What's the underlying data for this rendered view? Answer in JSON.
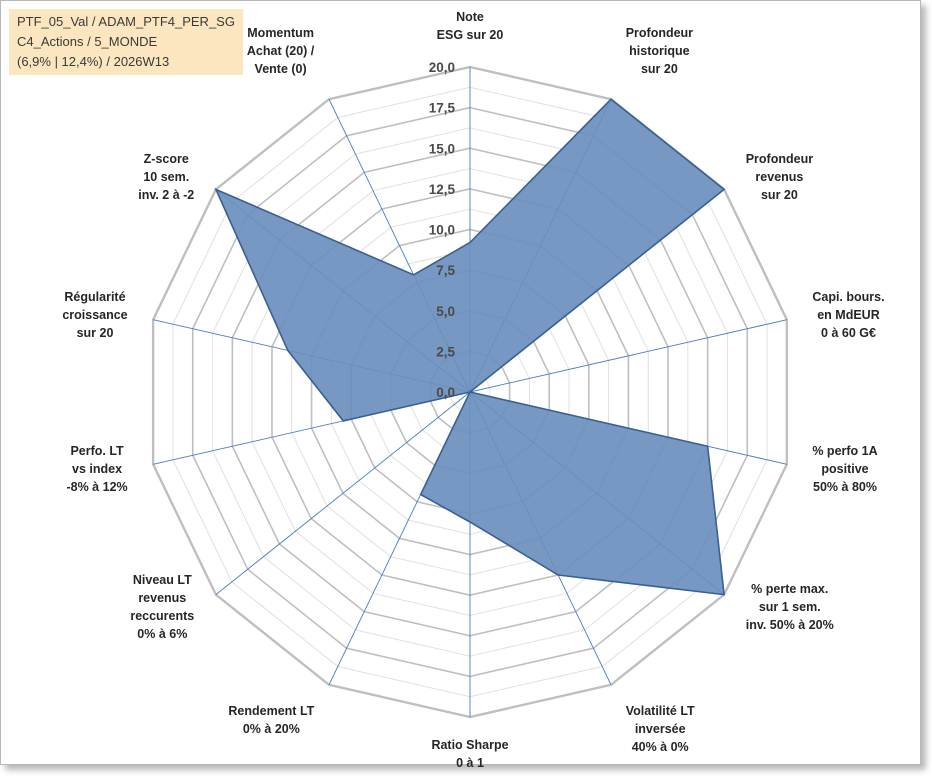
{
  "header": {
    "line1": "PTF_05_Val / ADAM_PTF4_PER_SG",
    "line2": "C4_Actions / 5_MONDE",
    "line3": "(6,9% | 12,4%) / 2026W13"
  },
  "colors": {
    "fill": "#6a8fbd",
    "stroke": "#3a5f92",
    "spoke": "#4a7cc2",
    "grid_major": "#bfbfbf",
    "grid_minor": "#e0e0e0"
  },
  "chart_data": {
    "type": "radar",
    "title": "",
    "rmin": 0,
    "rmax": 20,
    "ticks": [
      "0,0",
      "2,5",
      "5,0",
      "7,5",
      "10,0",
      "12,5",
      "15,0",
      "17,5",
      "20,0"
    ],
    "tick_values": [
      0,
      2.5,
      5,
      7.5,
      10,
      12.5,
      15,
      17.5,
      20
    ],
    "categories": [
      [
        "Note",
        "ESG sur 20"
      ],
      [
        "Profondeur",
        "historique",
        "sur 20"
      ],
      [
        "Profondeur",
        "revenus",
        "sur 20"
      ],
      [
        "Capi. bours.",
        "en MdEUR",
        "0 à 60 G€"
      ],
      [
        "% perfo 1A",
        "positive",
        "50% à 80%"
      ],
      [
        "% perte max.",
        "sur 1 sem.",
        "inv. 50% à 20%"
      ],
      [
        "Volatilité LT",
        "inversée",
        "40% à 0%"
      ],
      [
        "Ratio Sharpe",
        "0 à 1"
      ],
      [
        "Rendement LT",
        "0% à 20%"
      ],
      [
        "Niveau LT",
        "revenus",
        "reccurents",
        "0% à 6%"
      ],
      [
        "Perfo. LT",
        "vs index",
        "-8% à 12%"
      ],
      [
        "Régularité",
        "croissance",
        "sur 20"
      ],
      [
        "Z-score",
        "10 sem.",
        "inv. 2 à -2"
      ],
      [
        "Momentum",
        "Achat (20) /",
        "Vente (0)"
      ]
    ],
    "series": [
      {
        "name": "PTF_05_Val",
        "values": [
          9.2,
          20,
          20,
          0,
          15,
          20,
          12.5,
          8,
          7,
          0,
          8,
          11.5,
          20,
          8
        ]
      }
    ]
  }
}
